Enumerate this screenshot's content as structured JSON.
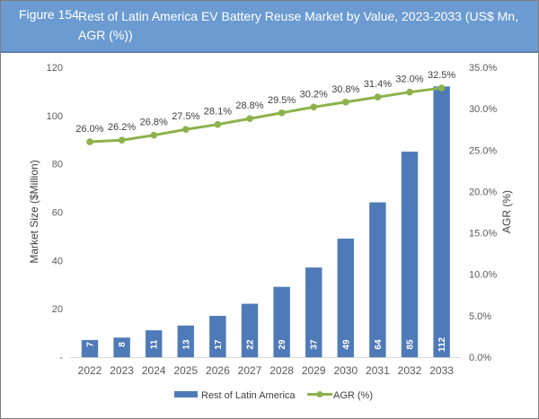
{
  "header": {
    "figure_label": "Figure 154",
    "title": "Rest of Latin America EV Battery Reuse Market by Value, 2023-2033 (US$ Mn, AGR (%))"
  },
  "colors": {
    "header_bg": "#6b9bd1",
    "bar": "#4f7ab8",
    "line": "#8db24c"
  },
  "chart_data": {
    "type": "bar+line",
    "title": "Rest of Latin America EV Battery Reuse Market by Value, 2023-2033 (US$ Mn, AGR (%))",
    "categories": [
      "2022",
      "2023",
      "2024",
      "2025",
      "2026",
      "2027",
      "2028",
      "2029",
      "2030",
      "2031",
      "2032",
      "2033"
    ],
    "series": [
      {
        "name": "Rest of Latin America",
        "type": "bar",
        "axis": "left",
        "values": [
          7,
          8,
          11,
          13,
          17,
          22,
          29,
          37,
          49,
          64,
          85,
          112
        ],
        "labels": [
          "7",
          "8",
          "11",
          "13",
          "17",
          "22",
          "29",
          "37",
          "49",
          "64",
          "85",
          "112"
        ]
      },
      {
        "name": "AGR (%)",
        "type": "line",
        "axis": "right",
        "values": [
          26.0,
          26.2,
          26.8,
          27.5,
          28.1,
          28.8,
          29.5,
          30.2,
          30.8,
          31.4,
          32.0,
          32.5
        ],
        "labels": [
          "26.0%",
          "26.2%",
          "26.8%",
          "27.5%",
          "28.1%",
          "28.8%",
          "29.5%",
          "30.2%",
          "30.8%",
          "31.4%",
          "32.0%",
          "32.5%"
        ]
      }
    ],
    "ylabel": "Market Size ($Million)",
    "y2label": "AGR (%)",
    "ylim": [
      0,
      120
    ],
    "y2lim": [
      0,
      35
    ],
    "yticks": [
      0,
      20,
      40,
      60,
      80,
      100,
      120
    ],
    "ytick_labels": [
      "-",
      "20",
      "40",
      "60",
      "80",
      "100",
      "120"
    ],
    "y2ticks": [
      0,
      5,
      10,
      15,
      20,
      25,
      30,
      35
    ],
    "y2tick_labels": [
      "0.0%",
      "5.0%",
      "10.0%",
      "15.0%",
      "20.0%",
      "25.0%",
      "30.0%",
      "35.0%"
    ],
    "grid": false,
    "legend": {
      "position": "bottom",
      "entries": [
        "Rest of Latin America",
        "AGR (%)"
      ]
    }
  }
}
